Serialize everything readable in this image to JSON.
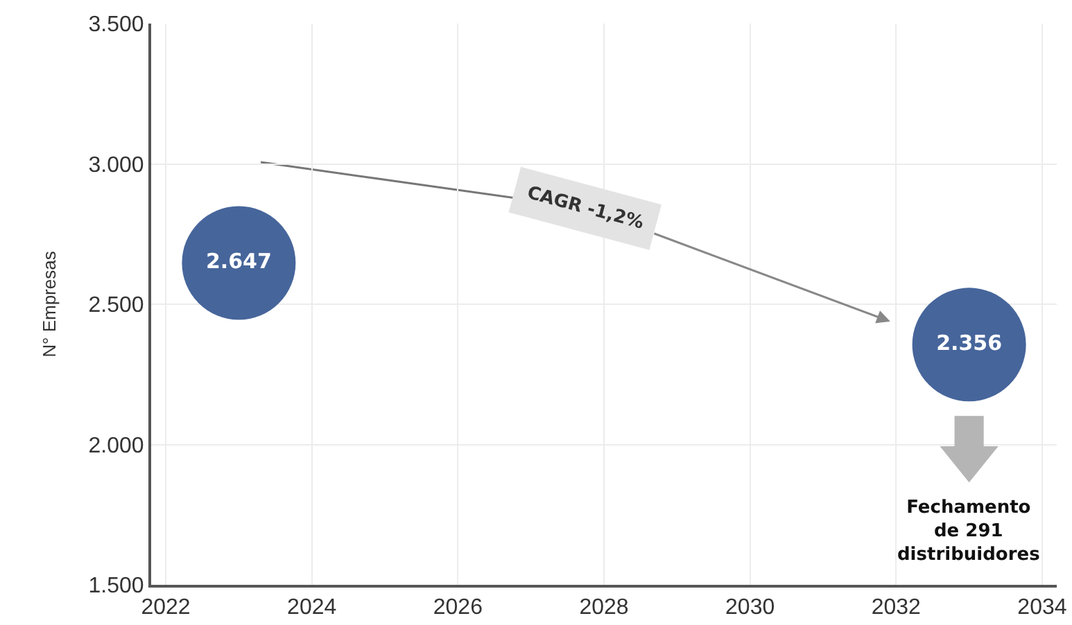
{
  "chart_data": {
    "type": "scatter",
    "ylabel": "N° Empresas",
    "x": [
      2023,
      2033
    ],
    "values": [
      2647,
      2356
    ],
    "value_labels": [
      "2.647",
      "2.356"
    ],
    "color": "#46659b",
    "marker": "circle",
    "xlim": [
      2021.8,
      2034.2
    ],
    "xticks": [
      2022,
      2024,
      2026,
      2028,
      2030,
      2032,
      2034
    ],
    "ylim": [
      1500,
      3500
    ],
    "yticks": [
      {
        "value": 1500,
        "label": "1.500"
      },
      {
        "value": 2000,
        "label": "2.000"
      },
      {
        "value": 2500,
        "label": "2.500"
      },
      {
        "value": 3000,
        "label": "3.000"
      },
      {
        "value": 3500,
        "label": "3.500"
      }
    ],
    "grid": true,
    "annotations": [
      "CAGR -1,2%",
      "Fechamento\nde 291\ndistribuidores"
    ]
  }
}
